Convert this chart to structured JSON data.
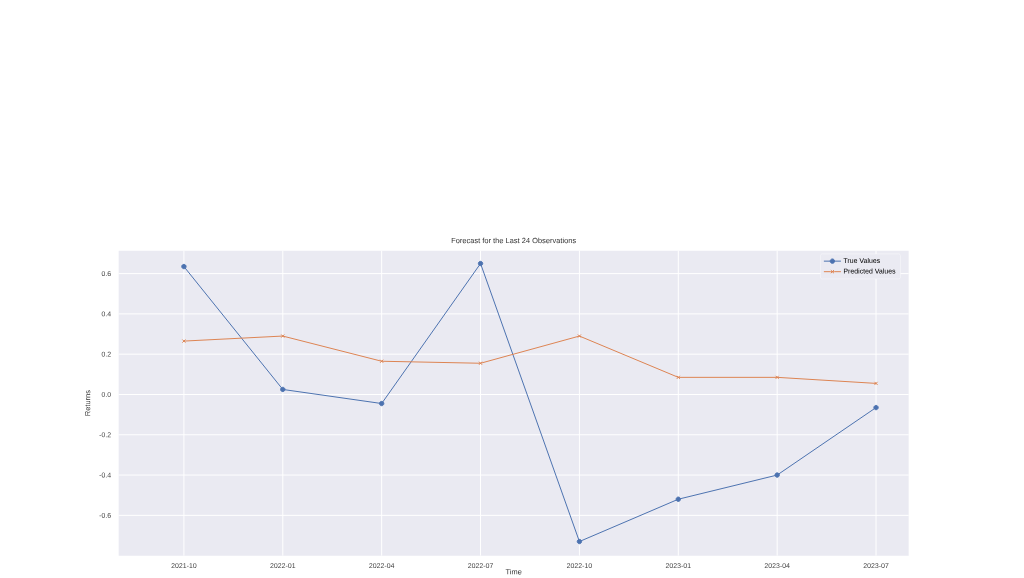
{
  "chart_data": {
    "type": "line",
    "title": "Forecast for the Last 24 Observations",
    "xlabel": "Time",
    "ylabel": "Returns",
    "categories": [
      "2021-10",
      "2022-01",
      "2022-04",
      "2022-07",
      "2022-10",
      "2023-01",
      "2023-04",
      "2023-07"
    ],
    "series": [
      {
        "name": "True Values",
        "color": "#4c72b0",
        "marker": "circle",
        "values": [
          0.635,
          0.025,
          -0.045,
          0.65,
          -0.73,
          -0.52,
          -0.4,
          -0.065
        ]
      },
      {
        "name": "Predicted Values",
        "color": "#dd8452",
        "marker": "cross",
        "values": [
          0.265,
          0.29,
          0.165,
          0.155,
          0.29,
          0.085,
          0.085,
          0.055
        ]
      }
    ],
    "ylim": [
      -0.8,
      0.714
    ],
    "yticks": [
      -0.6,
      -0.4,
      -0.2,
      {
        "value": 0,
        "label": "0.0"
      },
      0.2,
      0.4,
      0.6
    ],
    "grid": true,
    "legend": "top right",
    "line_style": "solid"
  }
}
